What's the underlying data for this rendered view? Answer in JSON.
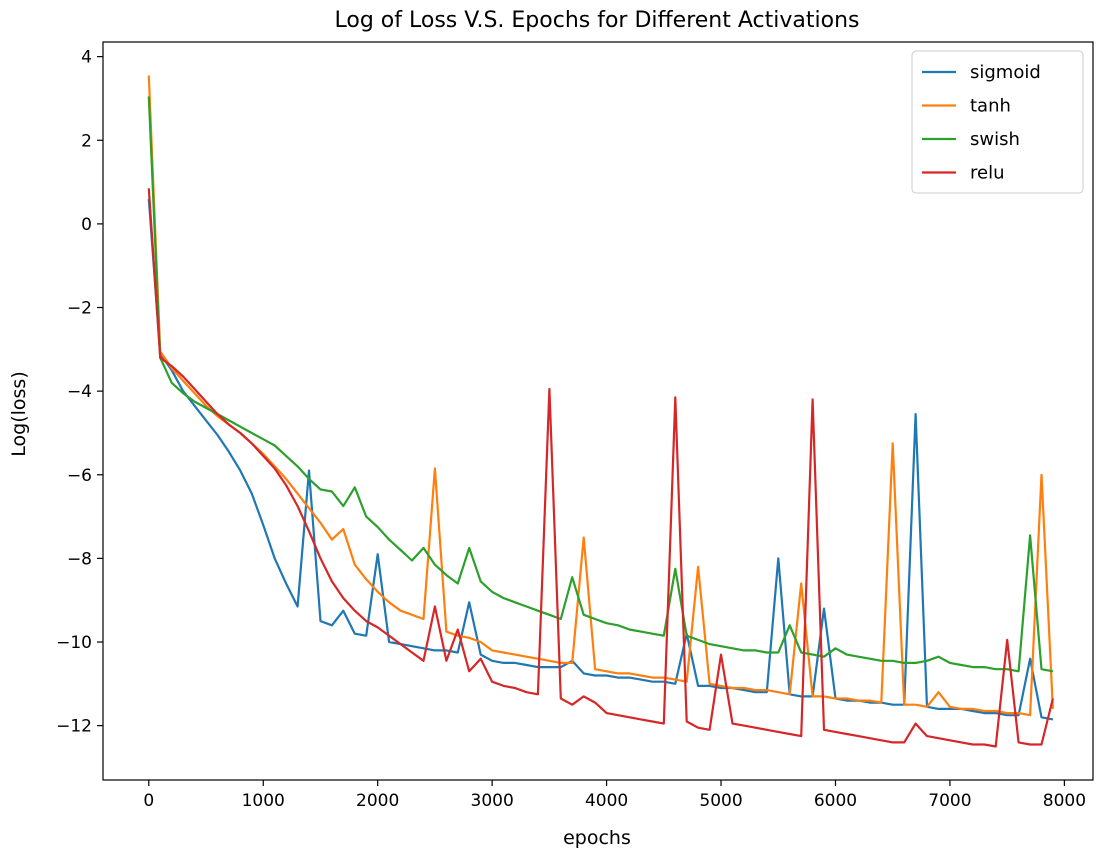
{
  "chart_data": {
    "type": "line",
    "title": "Log of Loss V.S. Epochs for Different Activations",
    "xlabel": "epochs",
    "ylabel": "Log(loss)",
    "xlim": [
      -400,
      8250
    ],
    "ylim": [
      -13.3,
      4.35
    ],
    "xticks": [
      0,
      1000,
      2000,
      3000,
      4000,
      5000,
      6000,
      7000,
      8000
    ],
    "yticks": [
      -12,
      -10,
      -8,
      -6,
      -4,
      -2,
      0,
      2,
      4
    ],
    "legend_position": "top-right",
    "grid": false,
    "x": [
      0,
      100,
      200,
      300,
      400,
      500,
      600,
      700,
      800,
      900,
      1000,
      1100,
      1200,
      1300,
      1400,
      1500,
      1600,
      1700,
      1800,
      1900,
      2000,
      2100,
      2200,
      2300,
      2400,
      2500,
      2600,
      2700,
      2800,
      2900,
      3000,
      3100,
      3200,
      3300,
      3400,
      3500,
      3600,
      3700,
      3800,
      3900,
      4000,
      4100,
      4200,
      4300,
      4400,
      4500,
      4600,
      4700,
      4800,
      4900,
      5000,
      5100,
      5200,
      5300,
      5400,
      5500,
      5600,
      5700,
      5800,
      5900,
      6000,
      6100,
      6200,
      6300,
      6400,
      6500,
      6600,
      6700,
      6800,
      6900,
      7000,
      7100,
      7200,
      7300,
      7400,
      7500,
      7600,
      7700,
      7800,
      7900
    ],
    "series": [
      {
        "name": "sigmoid",
        "color": "#1f77b4",
        "values": [
          0.6,
          -3.1,
          -3.5,
          -4.0,
          -4.35,
          -4.7,
          -5.05,
          -5.45,
          -5.9,
          -6.45,
          -7.2,
          -8.0,
          -8.6,
          -9.15,
          -5.9,
          -9.5,
          -9.6,
          -9.25,
          -9.8,
          -9.85,
          -7.9,
          -10.0,
          -10.05,
          -10.1,
          -10.15,
          -10.2,
          -10.2,
          -10.25,
          -9.05,
          -10.3,
          -10.45,
          -10.5,
          -10.5,
          -10.55,
          -10.6,
          -10.6,
          -10.6,
          -10.45,
          -10.75,
          -10.8,
          -10.8,
          -10.85,
          -10.85,
          -10.9,
          -10.95,
          -10.95,
          -11.0,
          -9.8,
          -11.05,
          -11.05,
          -11.1,
          -11.1,
          -11.15,
          -11.2,
          -11.2,
          -8.0,
          -11.25,
          -11.3,
          -11.3,
          -9.2,
          -11.35,
          -11.4,
          -11.4,
          -11.45,
          -11.45,
          -11.5,
          -11.5,
          -4.55,
          -11.55,
          -11.6,
          -11.6,
          -11.6,
          -11.65,
          -11.7,
          -11.7,
          -11.75,
          -11.75,
          -10.4,
          -11.8,
          -11.85
        ]
      },
      {
        "name": "tanh",
        "color": "#ff7f0e",
        "values": [
          3.55,
          -3.05,
          -3.45,
          -3.75,
          -4.05,
          -4.35,
          -4.6,
          -4.8,
          -5.0,
          -5.25,
          -5.5,
          -5.8,
          -6.1,
          -6.45,
          -6.8,
          -7.15,
          -7.55,
          -7.3,
          -8.15,
          -8.5,
          -8.8,
          -9.05,
          -9.25,
          -9.35,
          -9.45,
          -5.85,
          -9.75,
          -9.85,
          -9.9,
          -10.0,
          -10.2,
          -10.25,
          -10.3,
          -10.35,
          -10.4,
          -10.45,
          -10.5,
          -10.5,
          -7.5,
          -10.65,
          -10.7,
          -10.75,
          -10.75,
          -10.8,
          -10.85,
          -10.85,
          -10.9,
          -10.95,
          -8.2,
          -11.0,
          -11.05,
          -11.1,
          -11.1,
          -11.15,
          -11.15,
          -11.2,
          -11.25,
          -8.6,
          -11.3,
          -11.3,
          -11.35,
          -11.35,
          -11.4,
          -11.4,
          -11.45,
          -5.25,
          -11.5,
          -11.5,
          -11.55,
          -11.2,
          -11.55,
          -11.6,
          -11.6,
          -11.65,
          -11.65,
          -11.7,
          -11.7,
          -11.75,
          -6.0,
          -11.6
        ]
      },
      {
        "name": "swish",
        "color": "#2ca02c",
        "values": [
          3.05,
          -3.2,
          -3.8,
          -4.05,
          -4.25,
          -4.4,
          -4.55,
          -4.7,
          -4.85,
          -5.0,
          -5.15,
          -5.3,
          -5.55,
          -5.8,
          -6.1,
          -6.35,
          -6.4,
          -6.75,
          -6.3,
          -7.0,
          -7.25,
          -7.55,
          -7.8,
          -8.05,
          -7.75,
          -8.15,
          -8.4,
          -8.6,
          -7.75,
          -8.55,
          -8.8,
          -8.95,
          -9.05,
          -9.15,
          -9.25,
          -9.35,
          -9.45,
          -8.45,
          -9.35,
          -9.45,
          -9.55,
          -9.6,
          -9.7,
          -9.75,
          -9.8,
          -9.85,
          -8.25,
          -9.85,
          -9.95,
          -10.05,
          -10.1,
          -10.15,
          -10.2,
          -10.2,
          -10.25,
          -10.25,
          -9.6,
          -10.25,
          -10.3,
          -10.35,
          -10.15,
          -10.3,
          -10.35,
          -10.4,
          -10.45,
          -10.45,
          -10.5,
          -10.5,
          -10.45,
          -10.35,
          -10.5,
          -10.55,
          -10.6,
          -10.6,
          -10.65,
          -10.65,
          -10.7,
          -7.45,
          -10.65,
          -10.7
        ]
      },
      {
        "name": "relu",
        "color": "#d62728",
        "values": [
          0.85,
          -3.2,
          -3.4,
          -3.65,
          -3.95,
          -4.25,
          -4.55,
          -4.8,
          -5.0,
          -5.25,
          -5.55,
          -5.85,
          -6.25,
          -6.75,
          -7.35,
          -8.0,
          -8.55,
          -8.95,
          -9.25,
          -9.5,
          -9.65,
          -9.85,
          -10.05,
          -10.25,
          -10.45,
          -9.15,
          -10.45,
          -9.7,
          -10.7,
          -10.4,
          -10.95,
          -11.05,
          -11.1,
          -11.2,
          -11.25,
          -3.95,
          -11.35,
          -11.5,
          -11.3,
          -11.45,
          -11.7,
          -11.75,
          -11.8,
          -11.85,
          -11.9,
          -11.95,
          -4.15,
          -11.9,
          -12.05,
          -12.1,
          -10.3,
          -11.95,
          -12.0,
          -12.05,
          -12.1,
          -12.15,
          -12.2,
          -12.25,
          -4.2,
          -12.1,
          -12.15,
          -12.2,
          -12.25,
          -12.3,
          -12.35,
          -12.4,
          -12.4,
          -11.95,
          -12.25,
          -12.3,
          -12.35,
          -12.4,
          -12.45,
          -12.45,
          -12.5,
          -9.95,
          -12.4,
          -12.45,
          -12.45,
          -11.35
        ]
      }
    ]
  }
}
